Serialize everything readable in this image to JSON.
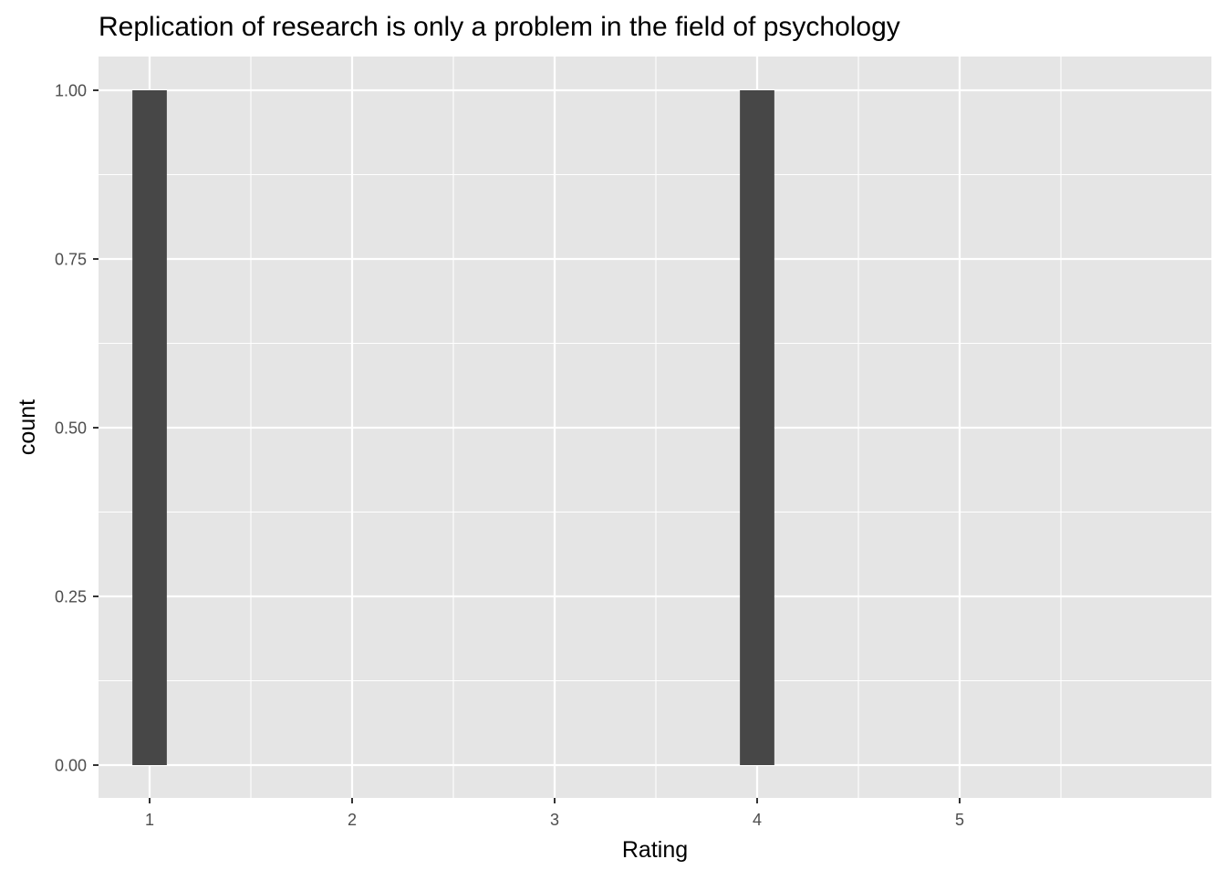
{
  "chart_data": {
    "type": "bar",
    "title": "Replication of research is only a problem in the field of psychology",
    "xlabel": "Rating",
    "ylabel": "count",
    "x_ticks": [
      "1",
      "2",
      "3",
      "4",
      "5"
    ],
    "y_ticks": [
      "0.00",
      "0.25",
      "0.50",
      "0.75",
      "1.00"
    ],
    "xlim": [
      0.5,
      5.5
    ],
    "ylim": [
      0,
      1
    ],
    "grid": true,
    "bars": [
      {
        "x": 1,
        "value": 1
      },
      {
        "x": 4,
        "value": 1
      }
    ],
    "bar_width_units": 0.17,
    "colors": {
      "panel_background": "#e5e5e5",
      "grid": "#ffffff",
      "bar_fill": "#474747",
      "tick_text": "#4d4d4d",
      "tick_mark": "#333333"
    }
  }
}
